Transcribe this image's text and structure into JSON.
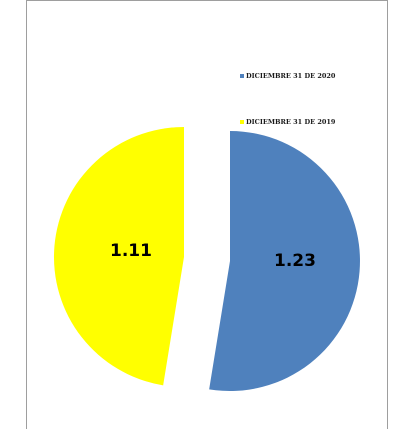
{
  "chart_data": {
    "type": "pie",
    "title": "",
    "slices": [
      {
        "name": "DICIEMBRE 31 DE 2020",
        "value": 1.23,
        "label": "1.23",
        "color": "#4F81BD"
      },
      {
        "name": "DICIEMBRE 31 DE 2019",
        "value": 1.11,
        "label": "1.11",
        "color": "#FFFF00"
      }
    ],
    "exploded": true,
    "legend_position": "top-right"
  }
}
